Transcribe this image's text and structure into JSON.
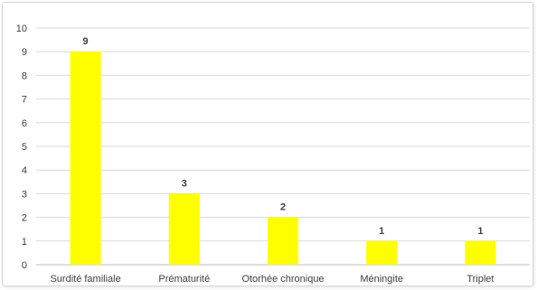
{
  "chart_data": {
    "type": "bar",
    "categories": [
      "Surdité familiale",
      "Prématurité",
      "Otorhée chronique",
      "Méningite",
      "Triplet"
    ],
    "values": [
      9,
      3,
      2,
      1,
      1
    ],
    "title": "",
    "xlabel": "",
    "ylabel": "",
    "ylim": [
      0,
      10
    ],
    "yticks": [
      0,
      1,
      2,
      3,
      4,
      5,
      6,
      7,
      8,
      9,
      10
    ],
    "grid": true,
    "legend": "none",
    "bar_color": "#FFFF00",
    "data_labels": true
  }
}
